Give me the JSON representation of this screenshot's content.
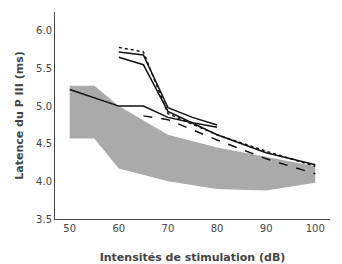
{
  "chart_data": {
    "type": "line",
    "xlabel": "Intensités de stimulation (dB)",
    "ylabel": "Latence du P III (ms)",
    "xlim": [
      47,
      103
    ],
    "ylim": [
      3.5,
      6.25
    ],
    "xticks": [
      50,
      60,
      70,
      80,
      90,
      100
    ],
    "yticks": [
      3.5,
      {
        "value": 4,
        "label": "4.0"
      },
      4.5,
      {
        "value": 5,
        "label": "5.0"
      },
      5.5,
      {
        "value": 6,
        "label": "6.0"
      }
    ],
    "grid": false,
    "series": [
      {
        "type": "band",
        "color": "#aaaaaa",
        "x": [
          50,
          55,
          60,
          70,
          80,
          90,
          100
        ],
        "lower": [
          4.57,
          4.57,
          4.17,
          4.0,
          3.9,
          3.88,
          3.98
        ],
        "upper": [
          5.27,
          5.27,
          5.0,
          4.62,
          4.45,
          4.33,
          4.2
        ]
      },
      {
        "type": "line",
        "color": "#111111",
        "line_style": "solid",
        "x": [
          50,
          60,
          65,
          70,
          75,
          80
        ],
        "values": [
          5.22,
          5.0,
          5.0,
          4.85,
          4.78,
          4.72
        ]
      },
      {
        "type": "line",
        "color": "#111111",
        "line_style": "solid",
        "x": [
          60,
          65,
          70,
          80,
          90,
          100
        ],
        "values": [
          5.65,
          5.55,
          4.93,
          4.62,
          4.38,
          4.22
        ]
      },
      {
        "type": "line",
        "color": "#111111",
        "line_style": "solid",
        "x": [
          60,
          65,
          70,
          75,
          80
        ],
        "values": [
          5.72,
          5.68,
          4.98,
          4.85,
          4.75
        ]
      },
      {
        "type": "line",
        "color": "#111111",
        "line_style": "dotted",
        "x": [
          60,
          65,
          70,
          80,
          90,
          100
        ],
        "values": [
          5.78,
          5.72,
          4.9,
          4.62,
          4.4,
          4.2
        ]
      },
      {
        "type": "line",
        "color": "#111111",
        "line_style": "dashed",
        "x": [
          65,
          70,
          80,
          90,
          100
        ],
        "values": [
          4.87,
          4.82,
          4.55,
          4.3,
          4.1
        ]
      }
    ]
  }
}
